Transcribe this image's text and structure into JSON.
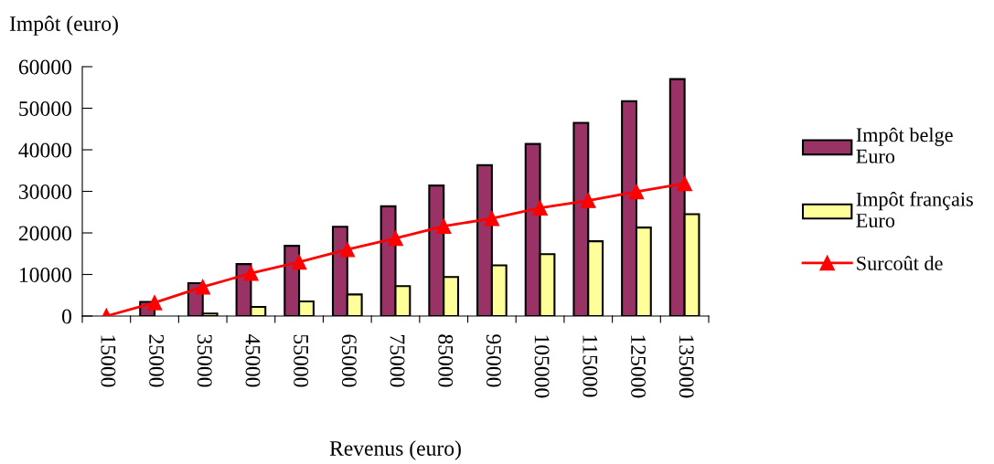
{
  "chart_data": {
    "type": "bar",
    "xlabel": "Revenus (euro)",
    "ylabel": "Impôt (euro)",
    "categories": [
      "15000",
      "25000",
      "35000",
      "45000",
      "55000",
      "65000",
      "75000",
      "85000",
      "95000",
      "105000",
      "115000",
      "125000",
      "135000"
    ],
    "series": [
      {
        "name": "Impôt belge\nEuro",
        "color": "#993366",
        "values": [
          null,
          3400,
          7900,
          12500,
          16900,
          21500,
          26400,
          31400,
          36300,
          41400,
          46500,
          51700,
          57000
        ]
      },
      {
        "name": "Impôt français\nEuro",
        "color": "#ffff99",
        "values": [
          null,
          null,
          600,
          2200,
          3500,
          5200,
          7200,
          9400,
          12200,
          14900,
          18000,
          21300,
          24500
        ]
      },
      {
        "name": "Surcoût de",
        "type": "line",
        "color": "#ff0000",
        "marker": "triangle",
        "values": [
          0,
          3200,
          7000,
          10300,
          13000,
          16000,
          18700,
          21600,
          23500,
          26000,
          27800,
          29900,
          31900
        ]
      }
    ],
    "ylim": [
      0,
      60000
    ],
    "yticks": [
      0,
      10000,
      20000,
      30000,
      40000,
      50000,
      60000
    ],
    "grid": false,
    "legend": "right"
  }
}
